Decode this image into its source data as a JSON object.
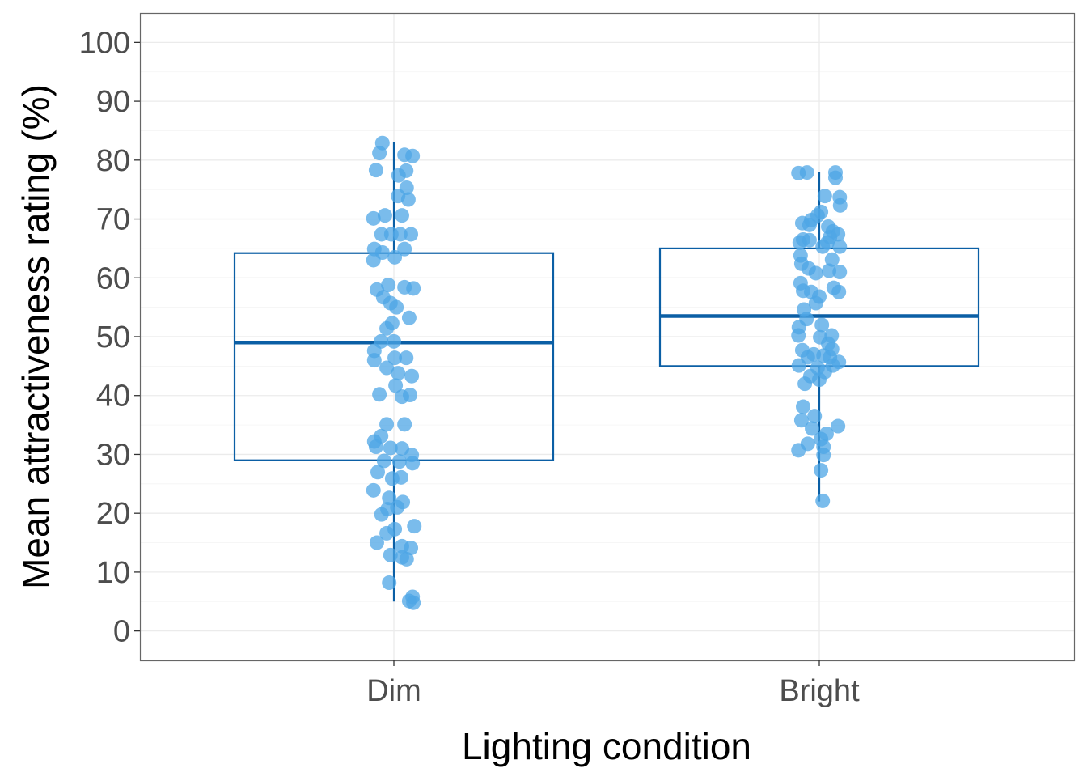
{
  "chart_data": {
    "type": "boxplot-with-jittered-points",
    "title": "",
    "xlabel": "Lighting condition",
    "ylabel": "Mean attractiveness rating (%)",
    "ylim": [
      -5,
      105
    ],
    "yticks": [
      0,
      10,
      20,
      30,
      40,
      50,
      60,
      70,
      80,
      90,
      100
    ],
    "grid": true,
    "categories": [
      "Dim",
      "Bright"
    ],
    "colors": {
      "box": "#0b5fa5",
      "points": "#4ea6e6",
      "grid": "#ebebeb",
      "panel_border": "#666666"
    },
    "boxes": [
      {
        "category": "Dim",
        "whisker_low": 5,
        "q1": 29,
        "median": 49,
        "q3": 64.2,
        "whisker_high": 83
      },
      {
        "category": "Bright",
        "whisker_low": 22,
        "q1": 45,
        "median": 53.5,
        "q3": 65,
        "whisker_high": 78
      }
    ],
    "points": [
      {
        "category": "Dim",
        "data": [
          [
            82.9,
            -0.027
          ],
          [
            81.2,
            -0.034
          ],
          [
            80.9,
            0.025
          ],
          [
            80.7,
            0.044
          ],
          [
            78.3,
            -0.042
          ],
          [
            78.2,
            0.029
          ],
          [
            77.4,
            0.011
          ],
          [
            75.3,
            0.03
          ],
          [
            73.9,
            0.01
          ],
          [
            73.3,
            0.034
          ],
          [
            70.1,
            -0.048
          ],
          [
            70.6,
            -0.021
          ],
          [
            70.6,
            0.019
          ],
          [
            67.4,
            -0.029
          ],
          [
            67.4,
            -0.006
          ],
          [
            67.4,
            0.015
          ],
          [
            67.4,
            0.04
          ],
          [
            64.9,
            -0.046
          ],
          [
            64.3,
            -0.027
          ],
          [
            64.9,
            0.025
          ],
          [
            63.5,
            0.002
          ],
          [
            63.0,
            -0.048
          ],
          [
            58.0,
            -0.04
          ],
          [
            58.8,
            -0.013
          ],
          [
            58.4,
            0.025
          ],
          [
            58.2,
            0.046
          ],
          [
            56.7,
            -0.025
          ],
          [
            55.7,
            -0.008
          ],
          [
            55.0,
            0.006
          ],
          [
            53.2,
            0.036
          ],
          [
            52.3,
            -0.004
          ],
          [
            51.4,
            -0.017
          ],
          [
            49.2,
            -0.03
          ],
          [
            49.2,
            0.0
          ],
          [
            47.6,
            -0.046
          ],
          [
            46.0,
            -0.046
          ],
          [
            46.4,
            0.002
          ],
          [
            46.4,
            0.029
          ],
          [
            44.7,
            -0.017
          ],
          [
            43.8,
            0.01
          ],
          [
            43.3,
            0.042
          ],
          [
            41.7,
            0.004
          ],
          [
            40.2,
            -0.034
          ],
          [
            39.8,
            0.019
          ],
          [
            40.1,
            0.038
          ],
          [
            35.1,
            -0.017
          ],
          [
            35.1,
            0.025
          ],
          [
            33.1,
            -0.03
          ],
          [
            32.2,
            -0.046
          ],
          [
            31.3,
            -0.042
          ],
          [
            31.1,
            -0.008
          ],
          [
            31.0,
            0.019
          ],
          [
            29.9,
            0.042
          ],
          [
            28.9,
            -0.023
          ],
          [
            28.8,
            0.013
          ],
          [
            28.5,
            0.044
          ],
          [
            27.0,
            -0.038
          ],
          [
            25.9,
            -0.004
          ],
          [
            26.1,
            0.017
          ],
          [
            23.9,
            -0.048
          ],
          [
            22.6,
            -0.011
          ],
          [
            21.9,
            0.021
          ],
          [
            21.0,
            0.008
          ],
          [
            20.7,
            -0.015
          ],
          [
            19.8,
            -0.029
          ],
          [
            17.8,
            0.048
          ],
          [
            17.3,
            0.002
          ],
          [
            16.6,
            -0.017
          ],
          [
            15.0,
            -0.04
          ],
          [
            14.4,
            0.019
          ],
          [
            14.1,
            0.04
          ],
          [
            12.9,
            -0.008
          ],
          [
            12.5,
            0.019
          ],
          [
            12.2,
            0.03
          ],
          [
            8.2,
            -0.011
          ],
          [
            5.8,
            0.044
          ],
          [
            5.1,
            0.036
          ],
          [
            4.8,
            0.046
          ]
        ]
      },
      {
        "category": "Bright",
        "data": [
          [
            77.8,
            -0.049
          ],
          [
            77.9,
            -0.029
          ],
          [
            77.9,
            0.038
          ],
          [
            77.0,
            0.038
          ],
          [
            73.9,
            0.013
          ],
          [
            73.7,
            0.048
          ],
          [
            72.3,
            0.049
          ],
          [
            71.2,
            0.004
          ],
          [
            70.6,
            -0.004
          ],
          [
            69.8,
            -0.019
          ],
          [
            69.3,
            -0.04
          ],
          [
            69.0,
            -0.023
          ],
          [
            68.7,
            0.021
          ],
          [
            67.9,
            0.032
          ],
          [
            67.4,
            0.044
          ],
          [
            66.9,
            0.025
          ],
          [
            66.5,
            -0.038
          ],
          [
            66.0,
            -0.046
          ],
          [
            66.4,
            -0.023
          ],
          [
            66.0,
            0.019
          ],
          [
            65.3,
            0.008
          ],
          [
            65.3,
            0.048
          ],
          [
            63.8,
            -0.044
          ],
          [
            63.1,
            0.03
          ],
          [
            62.4,
            -0.042
          ],
          [
            61.6,
            -0.025
          ],
          [
            61.2,
            0.023
          ],
          [
            61.0,
            0.048
          ],
          [
            60.8,
            -0.008
          ],
          [
            59.1,
            -0.044
          ],
          [
            58.3,
            0.034
          ],
          [
            57.8,
            -0.038
          ],
          [
            57.6,
            -0.019
          ],
          [
            57.6,
            0.046
          ],
          [
            56.8,
            0.0
          ],
          [
            55.7,
            -0.008
          ],
          [
            54.6,
            -0.036
          ],
          [
            53.0,
            -0.03
          ],
          [
            52.0,
            0.006
          ],
          [
            51.6,
            -0.048
          ],
          [
            50.2,
            -0.049
          ],
          [
            50.2,
            0.029
          ],
          [
            49.9,
            0.002
          ],
          [
            48.8,
            0.021
          ],
          [
            47.7,
            -0.04
          ],
          [
            47.9,
            0.03
          ],
          [
            47.0,
            -0.013
          ],
          [
            46.8,
            0.01
          ],
          [
            46.5,
            -0.027
          ],
          [
            46.5,
            0.025
          ],
          [
            45.7,
            0.046
          ],
          [
            45.1,
            -0.048
          ],
          [
            45.1,
            0.032
          ],
          [
            44.7,
            -0.004
          ],
          [
            44.0,
            0.013
          ],
          [
            43.3,
            -0.021
          ],
          [
            42.7,
            0.0
          ],
          [
            42.0,
            -0.034
          ],
          [
            38.1,
            -0.038
          ],
          [
            36.5,
            -0.011
          ],
          [
            35.8,
            -0.042
          ],
          [
            34.8,
            0.044
          ],
          [
            34.4,
            -0.017
          ],
          [
            33.5,
            0.017
          ],
          [
            32.6,
            0.004
          ],
          [
            31.8,
            -0.027
          ],
          [
            30.7,
            -0.049
          ],
          [
            31.3,
            0.01
          ],
          [
            29.9,
            0.01
          ],
          [
            27.3,
            0.004
          ],
          [
            22.1,
            0.008
          ]
        ]
      }
    ]
  }
}
